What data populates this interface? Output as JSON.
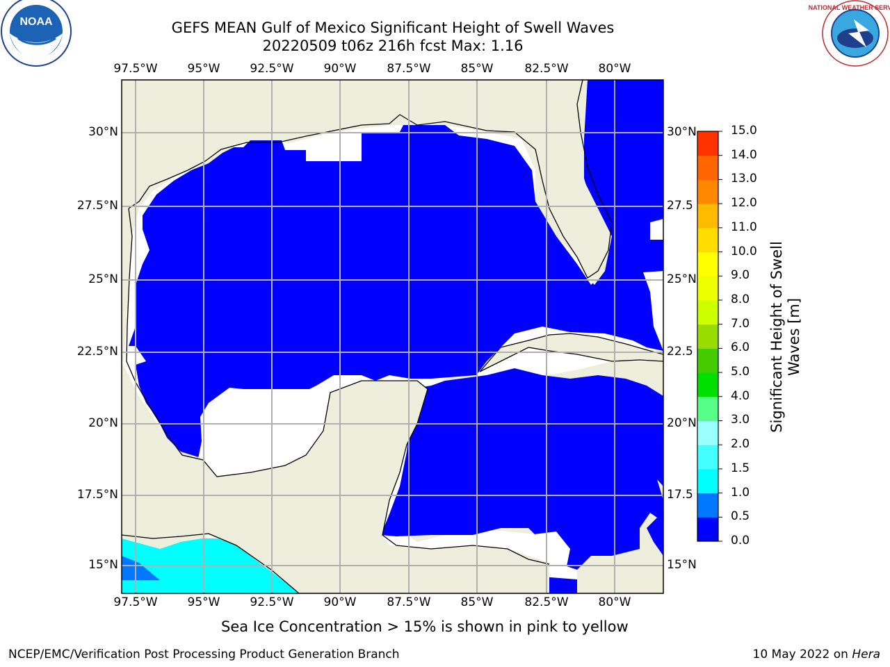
{
  "title_line1": "GEFS MEAN Gulf of Mexico Significant Height of Swell Waves",
  "title_line2": "20220509 t06z 216h fcst   Max: 1.16",
  "lon_ticks": [
    "97.5°W",
    "95°W",
    "92.5°W",
    "90°W",
    "87.5°W",
    "85°W",
    "82.5°W",
    "80°W"
  ],
  "lat_ticks": [
    "30°N",
    "27.5°N",
    "25°N",
    "22.5°N",
    "20°N",
    "17.5°N",
    "15°N"
  ],
  "lat_ticks_right": [
    "30°N",
    "27.5",
    "25°N",
    "22.5",
    "20°N",
    "17.5",
    "15°N"
  ],
  "colorbar": {
    "label_line1": "Significant Height of Swell",
    "label_line2": "Waves [m]",
    "tick_labels": [
      "15.0",
      "14.0",
      "13.0",
      "12.0",
      "11.0",
      "10.0",
      "9.0",
      "8.0",
      "7.0",
      "6.0",
      "5.0",
      "4.0",
      "3.0",
      "2.0",
      "1.5",
      "1.0",
      "0.5",
      "0.0"
    ],
    "levels": [
      0.0,
      0.5,
      1.0,
      1.5,
      2.0,
      3.0,
      4.0,
      5.0,
      6.0,
      7.0,
      8.0,
      9.0,
      10.0,
      11.0,
      12.0,
      13.0,
      14.0,
      15.0
    ],
    "colors": [
      "#0000ff",
      "#0077ff",
      "#00ffff",
      "#44ffff",
      "#99ffff",
      "#55ff88",
      "#00e000",
      "#44cc00",
      "#99dd00",
      "#ccff00",
      "#eeff00",
      "#ffff00",
      "#ffdd00",
      "#ffbb00",
      "#ff8800",
      "#ff6600",
      "#ff3300",
      "#ff0000"
    ]
  },
  "map_colors": {
    "land": "#eeeedc",
    "ocean_swell": "#0000ff",
    "no_data": "#ffffff",
    "grid": "#b0b0b0"
  },
  "ice_note": "Sea Ice Concentration > 15% is shown in pink to yellow",
  "footer_left": "NCEP/EMC/Verification Post Processing Product Generation Branch",
  "footer_right_prefix": "10 May 2022 on ",
  "footer_right_machine": "Hera",
  "logos": {
    "left": "NOAA",
    "right_text": "NATIONAL WEATHER SERVICE"
  }
}
